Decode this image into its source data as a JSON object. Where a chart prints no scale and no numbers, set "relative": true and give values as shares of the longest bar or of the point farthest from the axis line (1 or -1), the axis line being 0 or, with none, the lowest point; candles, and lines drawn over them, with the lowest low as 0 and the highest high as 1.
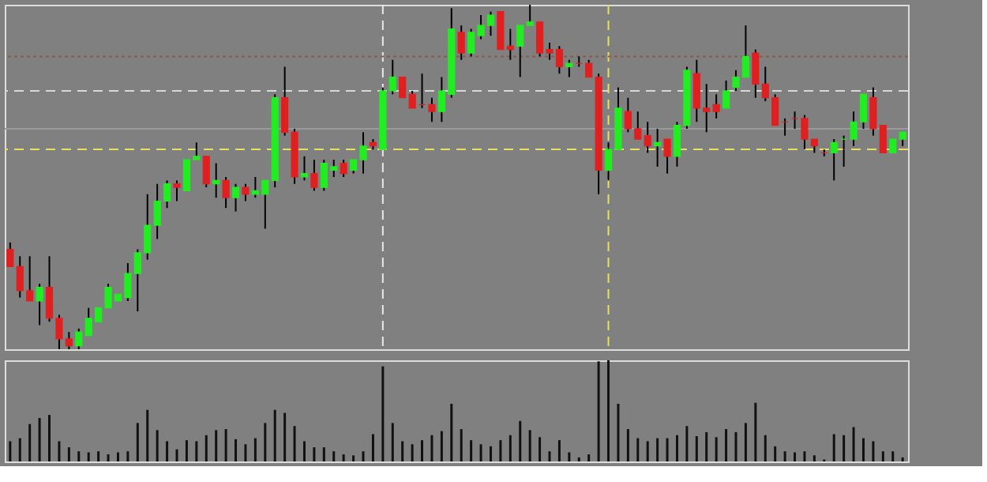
{
  "chart_data": [
    {
      "type": "candlestick",
      "relative": true,
      "categories": [
        null,
        null,
        null,
        null,
        null,
        null,
        null,
        null,
        null,
        null,
        null,
        null,
        null,
        null,
        null,
        null,
        null,
        null,
        null,
        null,
        null,
        null,
        null,
        null,
        null,
        null,
        null,
        null,
        null,
        null,
        null,
        null,
        null,
        null,
        null,
        null,
        null,
        null,
        null,
        null,
        null,
        null,
        null,
        null,
        null,
        null,
        null,
        null,
        null,
        null,
        null,
        null,
        null,
        null,
        null,
        null,
        null,
        null,
        null,
        null,
        null,
        null,
        null,
        null,
        null,
        null,
        null,
        null,
        null,
        null,
        null,
        null,
        null,
        null,
        null,
        null,
        null,
        null,
        null,
        null,
        null,
        null,
        null,
        null,
        null,
        null,
        null,
        null,
        null,
        null,
        null,
        null
      ],
      "ohlc": [
        [
          0.29,
          0.31,
          0.24,
          0.24
        ],
        [
          0.24,
          0.27,
          0.15,
          0.17
        ],
        [
          0.17,
          0.27,
          0.14,
          0.14
        ],
        [
          0.14,
          0.19,
          0.07,
          0.18
        ],
        [
          0.18,
          0.27,
          0.08,
          0.09
        ],
        [
          0.09,
          0.1,
          0.0,
          0.03
        ],
        [
          0.03,
          0.05,
          0.0,
          0.01
        ],
        [
          0.01,
          0.06,
          0.0,
          0.05
        ],
        [
          0.04,
          0.12,
          0.04,
          0.09
        ],
        [
          0.08,
          0.12,
          0.08,
          0.12
        ],
        [
          0.12,
          0.19,
          0.12,
          0.18
        ],
        [
          0.14,
          0.16,
          0.14,
          0.16
        ],
        [
          0.15,
          0.25,
          0.14,
          0.22
        ],
        [
          0.22,
          0.29,
          0.11,
          0.28
        ],
        [
          0.28,
          0.45,
          0.26,
          0.36
        ],
        [
          0.36,
          0.48,
          0.32,
          0.43
        ],
        [
          0.43,
          0.49,
          0.41,
          0.48
        ],
        [
          0.48,
          0.49,
          0.43,
          0.47
        ],
        [
          0.46,
          0.55,
          0.46,
          0.55
        ],
        [
          0.55,
          0.6,
          0.55,
          0.56
        ],
        [
          0.56,
          0.56,
          0.47,
          0.48
        ],
        [
          0.48,
          0.54,
          0.44,
          0.49
        ],
        [
          0.49,
          0.5,
          0.41,
          0.44
        ],
        [
          0.44,
          0.48,
          0.4,
          0.47
        ],
        [
          0.47,
          0.48,
          0.43,
          0.45
        ],
        [
          0.45,
          0.5,
          0.44,
          0.46
        ],
        [
          0.45,
          0.49,
          0.35,
          0.49
        ],
        [
          0.49,
          0.74,
          0.47,
          0.73
        ],
        [
          0.73,
          0.82,
          0.62,
          0.63
        ],
        [
          0.63,
          0.64,
          0.48,
          0.5
        ],
        [
          0.5,
          0.56,
          0.49,
          0.51
        ],
        [
          0.51,
          0.55,
          0.46,
          0.47
        ],
        [
          0.47,
          0.55,
          0.46,
          0.54
        ],
        [
          0.52,
          0.55,
          0.5,
          0.53
        ],
        [
          0.54,
          0.55,
          0.5,
          0.51
        ],
        [
          0.52,
          0.55,
          0.51,
          0.55
        ],
        [
          0.55,
          0.63,
          0.51,
          0.59
        ],
        [
          0.6,
          0.61,
          0.58,
          0.59
        ],
        [
          0.58,
          0.76,
          0.58,
          0.75
        ],
        [
          0.75,
          0.84,
          0.74,
          0.79
        ],
        [
          0.79,
          0.79,
          0.73,
          0.73
        ],
        [
          0.74,
          0.75,
          0.7,
          0.7
        ],
        [
          0.71,
          0.8,
          0.7,
          0.71
        ],
        [
          0.71,
          0.73,
          0.66,
          0.69
        ],
        [
          0.69,
          0.79,
          0.66,
          0.75
        ],
        [
          0.74,
          0.99,
          0.73,
          0.93
        ],
        [
          0.92,
          0.94,
          0.84,
          0.86
        ],
        [
          0.86,
          0.93,
          0.85,
          0.92
        ],
        [
          0.91,
          0.97,
          0.9,
          0.94
        ],
        [
          0.94,
          0.98,
          0.91,
          0.97
        ],
        [
          0.98,
          0.98,
          0.87,
          0.87
        ],
        [
          0.88,
          0.93,
          0.84,
          0.87
        ],
        [
          0.88,
          0.94,
          0.79,
          0.94
        ],
        [
          0.94,
          1.0,
          0.94,
          0.95
        ],
        [
          0.95,
          0.95,
          0.85,
          0.86
        ],
        [
          0.87,
          0.89,
          0.84,
          0.86
        ],
        [
          0.87,
          0.88,
          0.8,
          0.82
        ],
        [
          0.82,
          0.84,
          0.79,
          0.83
        ],
        [
          0.83,
          0.85,
          0.82,
          0.83
        ],
        [
          0.83,
          0.84,
          0.79,
          0.79
        ],
        [
          0.79,
          0.8,
          0.45,
          0.52
        ],
        [
          0.52,
          0.6,
          0.49,
          0.58
        ],
        [
          0.58,
          0.76,
          0.58,
          0.7
        ],
        [
          0.69,
          0.73,
          0.63,
          0.64
        ],
        [
          0.64,
          0.69,
          0.61,
          0.61
        ],
        [
          0.62,
          0.66,
          0.57,
          0.59
        ],
        [
          0.59,
          0.64,
          0.53,
          0.6
        ],
        [
          0.61,
          0.61,
          0.51,
          0.56
        ],
        [
          0.56,
          0.66,
          0.53,
          0.65
        ],
        [
          0.65,
          0.82,
          0.64,
          0.81
        ],
        [
          0.8,
          0.84,
          0.66,
          0.7
        ],
        [
          0.7,
          0.77,
          0.63,
          0.69
        ],
        [
          0.71,
          0.74,
          0.67,
          0.69
        ],
        [
          0.7,
          0.78,
          0.7,
          0.75
        ],
        [
          0.76,
          0.81,
          0.75,
          0.79
        ],
        [
          0.79,
          0.94,
          0.79,
          0.85
        ],
        [
          0.86,
          0.87,
          0.73,
          0.77
        ],
        [
          0.77,
          0.82,
          0.72,
          0.73
        ],
        [
          0.73,
          0.74,
          0.65,
          0.65
        ],
        [
          0.66,
          0.67,
          0.62,
          0.66
        ],
        [
          0.67,
          0.69,
          0.64,
          0.67
        ],
        [
          0.67,
          0.68,
          0.58,
          0.61
        ],
        [
          0.61,
          0.61,
          0.57,
          0.59
        ],
        [
          0.57,
          0.58,
          0.56,
          0.57
        ],
        [
          0.57,
          0.61,
          0.49,
          0.6
        ],
        [
          0.61,
          0.62,
          0.53,
          0.61
        ],
        [
          0.61,
          0.69,
          0.59,
          0.66
        ],
        [
          0.66,
          0.74,
          0.64,
          0.74
        ],
        [
          0.73,
          0.76,
          0.62,
          0.64
        ],
        [
          0.65,
          0.65,
          0.57,
          0.57
        ],
        [
          0.57,
          0.61,
          0.57,
          0.61
        ],
        [
          0.61,
          0.63,
          0.59,
          0.63
        ]
      ],
      "colors": [
        "#e02020",
        "#e02020",
        "#e02020",
        "#20ee20",
        "#e02020",
        "#e02020",
        "#e02020",
        "#20ee20",
        "#20ee20",
        "#20ee20",
        "#20ee20",
        "#20ee20",
        "#20ee20",
        "#20ee20",
        "#20ee20",
        "#20ee20",
        "#20ee20",
        "#e02020",
        "#20ee20",
        "#20ee20",
        "#e02020",
        "#20ee20",
        "#e02020",
        "#20ee20",
        "#e02020",
        "#20ee20",
        "#20ee20",
        "#20ee20",
        "#e02020",
        "#e02020",
        "#20ee20",
        "#e02020",
        "#20ee20",
        "#20ee20",
        "#e02020",
        "#20ee20",
        "#20ee20",
        "#e02020",
        "#20ee20",
        "#20ee20",
        "#e02020",
        "#e02020",
        "#e02020",
        "#e02020",
        "#20ee20",
        "#20ee20",
        "#e02020",
        "#20ee20",
        "#20ee20",
        "#20ee20",
        "#e02020",
        "#e02020",
        "#20ee20",
        "#20ee20",
        "#e02020",
        "#e02020",
        "#e02020",
        "#20ee20",
        "#e02020",
        "#e02020",
        "#e02020",
        "#20ee20",
        "#20ee20",
        "#e02020",
        "#e02020",
        "#e02020",
        "#20ee20",
        "#e02020",
        "#20ee20",
        "#20ee20",
        "#e02020",
        "#e02020",
        "#e02020",
        "#20ee20",
        "#20ee20",
        "#20ee20",
        "#e02020",
        "#e02020",
        "#e02020",
        "#e02020",
        "#e02020",
        "#e02020",
        "#e02020",
        "#e02020",
        "#20ee20",
        "#20ee20",
        "#20ee20",
        "#20ee20",
        "#e02020",
        "#e02020",
        "#20ee20",
        "#20ee20"
      ],
      "ref_lines": [
        {
          "axis": "y",
          "value": 0.85,
          "color": "#8a5a4a",
          "line_style": "dotted"
        },
        {
          "axis": "y",
          "value": 0.75,
          "color": "#d8d8d8",
          "line_style": "dashed"
        },
        {
          "axis": "y",
          "value": 0.64,
          "color": "#9a9a9a",
          "line_style": "solid"
        },
        {
          "axis": "y",
          "value": 0.58,
          "color": "#e8e060",
          "line_style": "dashed"
        }
      ]
    },
    {
      "type": "bar",
      "relative": true,
      "color": "#111111",
      "categories": [
        null,
        null,
        null,
        null,
        null,
        null,
        null,
        null,
        null,
        null,
        null,
        null,
        null,
        null,
        null,
        null,
        null,
        null,
        null,
        null,
        null,
        null,
        null,
        null,
        null,
        null,
        null,
        null,
        null,
        null,
        null,
        null,
        null,
        null,
        null,
        null,
        null,
        null,
        null,
        null,
        null,
        null,
        null,
        null,
        null,
        null,
        null,
        null,
        null,
        null,
        null,
        null,
        null,
        null,
        null,
        null,
        null,
        null,
        null,
        null,
        null,
        null,
        null,
        null,
        null,
        null,
        null,
        null,
        null,
        null,
        null,
        null,
        null,
        null,
        null,
        null,
        null,
        null,
        null,
        null,
        null,
        null,
        null,
        null,
        null,
        null,
        null,
        null,
        null,
        null,
        null,
        null
      ],
      "values": [
        0.2,
        0.23,
        0.37,
        0.43,
        0.46,
        0.2,
        0.14,
        0.1,
        0.09,
        0.1,
        0.07,
        0.09,
        0.1,
        0.38,
        0.51,
        0.31,
        0.2,
        0.12,
        0.21,
        0.2,
        0.26,
        0.31,
        0.32,
        0.22,
        0.17,
        0.23,
        0.38,
        0.51,
        0.48,
        0.35,
        0.2,
        0.14,
        0.14,
        0.1,
        0.07,
        0.06,
        0.1,
        0.27,
        0.94,
        0.38,
        0.2,
        0.17,
        0.21,
        0.26,
        0.3,
        0.57,
        0.32,
        0.21,
        0.17,
        0.15,
        0.21,
        0.26,
        0.4,
        0.31,
        0.24,
        0.1,
        0.21,
        0.09,
        0.04,
        0.07,
        0.99,
        1.0,
        0.57,
        0.32,
        0.23,
        0.2,
        0.23,
        0.23,
        0.26,
        0.35,
        0.25,
        0.29,
        0.24,
        0.32,
        0.29,
        0.38,
        0.58,
        0.26,
        0.15,
        0.1,
        0.09,
        0.1,
        0.06,
        0.02,
        0.27,
        0.26,
        0.34,
        0.23,
        0.2,
        0.1,
        0.1,
        0.04
      ]
    }
  ]
}
